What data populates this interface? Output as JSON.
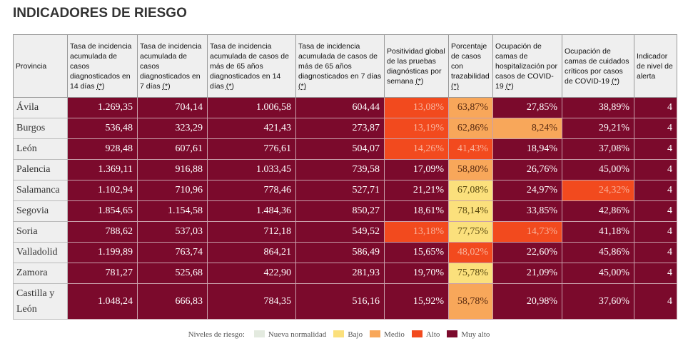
{
  "title": "INDICADORES DE RIESGO",
  "colors": {
    "nueva_normalidad": "#e3eadf",
    "bajo": "#fbe07c",
    "medio": "#f8a75a",
    "alto": "#f24a1e",
    "muy_alto": "#7b0a2c"
  },
  "headers": [
    {
      "label": "Provincia",
      "note": ""
    },
    {
      "label": "Tasa de incidencia acumulada de casos diagnosticados en 14 días",
      "note": "(*)"
    },
    {
      "label": "Tasa de incidencia acumulada de casos diagnosticados en 7 días",
      "note": "(*)"
    },
    {
      "label": "Tasa de incidencia acumulada de casos de más de 65 años diagnosticados en 14 días",
      "note": "(*)"
    },
    {
      "label": "Tasa de incidencia acumulada de casos de más de 65 años diagnosticados en 7 días",
      "note": "(*)"
    },
    {
      "label": "Positividad global de las pruebas diagnósticas por semana",
      "note": "(*)"
    },
    {
      "label": "Porcentaje de casos con trazabilidad",
      "note": "(*)"
    },
    {
      "label": "Ocupación de camas de hospitalización por casos de COVID-19",
      "note": "(*)"
    },
    {
      "label": "Ocupación de camas de cuidados críticos por casos de COVID-19",
      "note": "(*)"
    },
    {
      "label": "Indicador de nivel de alerta",
      "note": ""
    }
  ],
  "rows": [
    {
      "provincia": "Ávila",
      "values": [
        "1.269,35",
        "704,14",
        "1.006,58",
        "604,44",
        "13,08%",
        "63,87%",
        "27,85%",
        "38,89%",
        "4"
      ],
      "levels": [
        "muy_alto",
        "muy_alto",
        "muy_alto",
        "muy_alto",
        "alto",
        "medio",
        "muy_alto",
        "muy_alto",
        "muy_alto"
      ]
    },
    {
      "provincia": "Burgos",
      "values": [
        "536,48",
        "323,29",
        "421,43",
        "273,87",
        "13,19%",
        "62,86%",
        "8,24%",
        "29,21%",
        "4"
      ],
      "levels": [
        "muy_alto",
        "muy_alto",
        "muy_alto",
        "muy_alto",
        "alto",
        "medio",
        "medio",
        "muy_alto",
        "muy_alto"
      ]
    },
    {
      "provincia": "León",
      "values": [
        "928,48",
        "607,61",
        "776,61",
        "504,07",
        "14,26%",
        "41,43%",
        "18,94%",
        "37,08%",
        "4"
      ],
      "levels": [
        "muy_alto",
        "muy_alto",
        "muy_alto",
        "muy_alto",
        "alto",
        "alto",
        "muy_alto",
        "muy_alto",
        "muy_alto"
      ]
    },
    {
      "provincia": "Palencia",
      "values": [
        "1.369,11",
        "916,88",
        "1.033,45",
        "739,58",
        "17,09%",
        "58,80%",
        "26,76%",
        "45,00%",
        "4"
      ],
      "levels": [
        "muy_alto",
        "muy_alto",
        "muy_alto",
        "muy_alto",
        "muy_alto",
        "medio",
        "muy_alto",
        "muy_alto",
        "muy_alto"
      ]
    },
    {
      "provincia": "Salamanca",
      "values": [
        "1.102,94",
        "710,96",
        "778,46",
        "527,71",
        "21,21%",
        "67,08%",
        "24,97%",
        "24,32%",
        "4"
      ],
      "levels": [
        "muy_alto",
        "muy_alto",
        "muy_alto",
        "muy_alto",
        "muy_alto",
        "bajo",
        "muy_alto",
        "alto",
        "muy_alto"
      ]
    },
    {
      "provincia": "Segovia",
      "values": [
        "1.854,65",
        "1.154,58",
        "1.484,36",
        "850,27",
        "18,61%",
        "78,14%",
        "33,85%",
        "42,86%",
        "4"
      ],
      "levels": [
        "muy_alto",
        "muy_alto",
        "muy_alto",
        "muy_alto",
        "muy_alto",
        "bajo",
        "muy_alto",
        "muy_alto",
        "muy_alto"
      ]
    },
    {
      "provincia": "Soria",
      "values": [
        "788,62",
        "537,03",
        "712,18",
        "549,52",
        "13,18%",
        "77,75%",
        "14,73%",
        "41,18%",
        "4"
      ],
      "levels": [
        "muy_alto",
        "muy_alto",
        "muy_alto",
        "muy_alto",
        "alto",
        "bajo",
        "alto",
        "muy_alto",
        "muy_alto"
      ]
    },
    {
      "provincia": "Valladolid",
      "values": [
        "1.199,89",
        "763,74",
        "864,21",
        "586,49",
        "15,65%",
        "48,02%",
        "22,60%",
        "45,86%",
        "4"
      ],
      "levels": [
        "muy_alto",
        "muy_alto",
        "muy_alto",
        "muy_alto",
        "muy_alto",
        "alto",
        "muy_alto",
        "muy_alto",
        "muy_alto"
      ]
    },
    {
      "provincia": "Zamora",
      "values": [
        "781,27",
        "525,68",
        "422,90",
        "281,93",
        "19,70%",
        "75,78%",
        "21,09%",
        "45,00%",
        "4"
      ],
      "levels": [
        "muy_alto",
        "muy_alto",
        "muy_alto",
        "muy_alto",
        "muy_alto",
        "bajo",
        "muy_alto",
        "muy_alto",
        "muy_alto"
      ]
    },
    {
      "provincia": "Castilla y León",
      "values": [
        "1.048,24",
        "666,83",
        "784,35",
        "516,16",
        "15,92%",
        "58,78%",
        "20,98%",
        "37,60%",
        "4"
      ],
      "levels": [
        "muy_alto",
        "muy_alto",
        "muy_alto",
        "muy_alto",
        "muy_alto",
        "medio",
        "muy_alto",
        "muy_alto",
        "muy_alto"
      ]
    }
  ],
  "legend": {
    "label": "Niveles de riesgo:",
    "items": [
      {
        "key": "nueva_normalidad",
        "label": "Nueva normalidad"
      },
      {
        "key": "bajo",
        "label": "Bajo"
      },
      {
        "key": "medio",
        "label": "Medio"
      },
      {
        "key": "alto",
        "label": "Alto"
      },
      {
        "key": "muy_alto",
        "label": "Muy alto"
      }
    ]
  }
}
